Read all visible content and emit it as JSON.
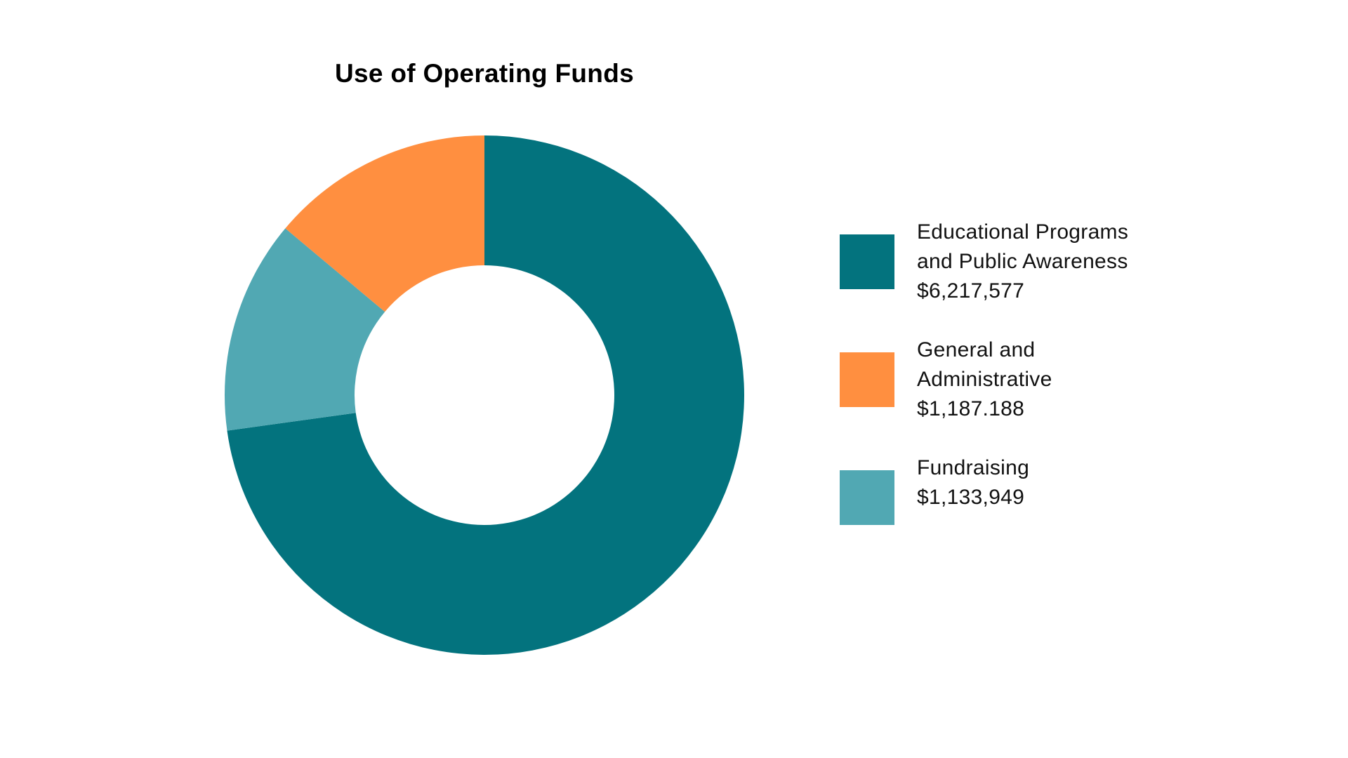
{
  "chart_data": {
    "type": "pie",
    "donut": true,
    "title": "Use of Operating Funds",
    "legend_position": "right",
    "slices": [
      {
        "label_lines": [
          "Educational Programs",
          "and Public Awareness",
          "$6,217,577"
        ],
        "value": 6217577,
        "color": "#03737E"
      },
      {
        "label_lines": [
          "General and",
          "Administrative",
          "$1,187.188"
        ],
        "value": 1187188,
        "color": "#FF8F40"
      },
      {
        "label_lines": [
          "Fundraising",
          "$1,133,949"
        ],
        "value": 1133949,
        "color": "#51A8B3"
      }
    ]
  }
}
